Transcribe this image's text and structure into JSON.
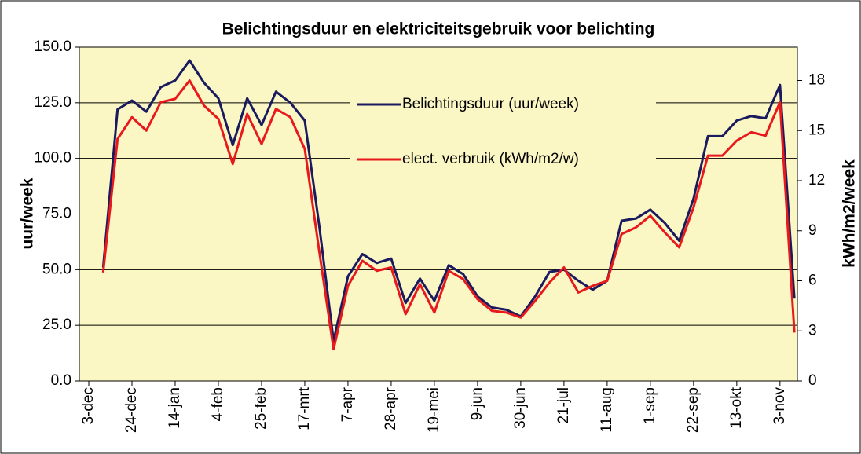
{
  "chart_data": {
    "type": "line",
    "title": "Belichtingsduur en elektriciteitsgebruik voor belichting",
    "y_label": "uur/week",
    "y2_label": "kWh/m2/week",
    "categories": [
      "3-dec",
      null,
      null,
      "24-dec",
      null,
      null,
      "14-jan",
      null,
      null,
      "4-feb",
      null,
      null,
      "25-feb",
      null,
      null,
      "17-mrt",
      null,
      null,
      "7-apr",
      null,
      null,
      "28-apr",
      null,
      null,
      "19-mei",
      null,
      null,
      "9-jun",
      null,
      null,
      "30-jun",
      null,
      null,
      "21-jul",
      null,
      null,
      "11-aug",
      null,
      null,
      "1-sep",
      null,
      null,
      "22-sep",
      null,
      null,
      "13-okt",
      null,
      null,
      "3-nov",
      null
    ],
    "series": [
      {
        "name": "Belichtingsduur (uur/week)",
        "color": "#1a1a5e",
        "values": [
          null,
          51,
          122,
          126,
          121,
          132,
          135,
          144,
          134,
          127,
          106,
          127,
          115,
          130,
          125,
          117,
          70,
          18,
          47,
          57,
          53,
          55,
          35,
          46,
          36,
          52,
          48,
          38,
          33,
          32,
          29,
          38,
          49,
          50,
          45,
          41,
          45,
          72,
          73,
          77,
          71,
          63,
          82,
          110,
          110,
          117,
          119,
          118,
          133,
          37
        ]
      },
      {
        "name": "elect. verbruik (kWh/m2/w)",
        "color": "#e8191c",
        "axis": "y2",
        "values": [
          null,
          6.5,
          14.5,
          15.8,
          15.0,
          16.7,
          16.9,
          18.0,
          16.5,
          15.7,
          13.0,
          16.0,
          14.2,
          16.3,
          15.8,
          13.9,
          7.8,
          1.9,
          5.7,
          7.2,
          6.6,
          6.8,
          4.0,
          5.8,
          4.1,
          6.6,
          6.1,
          4.9,
          4.2,
          4.1,
          3.8,
          4.8,
          5.9,
          6.8,
          5.3,
          5.7,
          6.0,
          8.8,
          9.2,
          9.9,
          8.9,
          8.0,
          10.4,
          13.5,
          13.5,
          14.4,
          14.9,
          14.7,
          16.7,
          2.9
        ]
      }
    ],
    "ylim": [
      0,
      150
    ],
    "yticks": [
      {
        "value": 0,
        "label": "0.0"
      },
      {
        "value": 25,
        "label": "25.0"
      },
      {
        "value": 50,
        "label": "50.0"
      },
      {
        "value": 75,
        "label": "75.0"
      },
      {
        "value": 100,
        "label": "100.0"
      },
      {
        "value": 125,
        "label": "125.0"
      },
      {
        "value": 150,
        "label": "150.0"
      }
    ],
    "y2lim": [
      0,
      20
    ],
    "y2ticks": [
      0,
      3,
      6,
      9,
      12,
      15,
      18
    ],
    "grid": true,
    "legend": "top"
  }
}
